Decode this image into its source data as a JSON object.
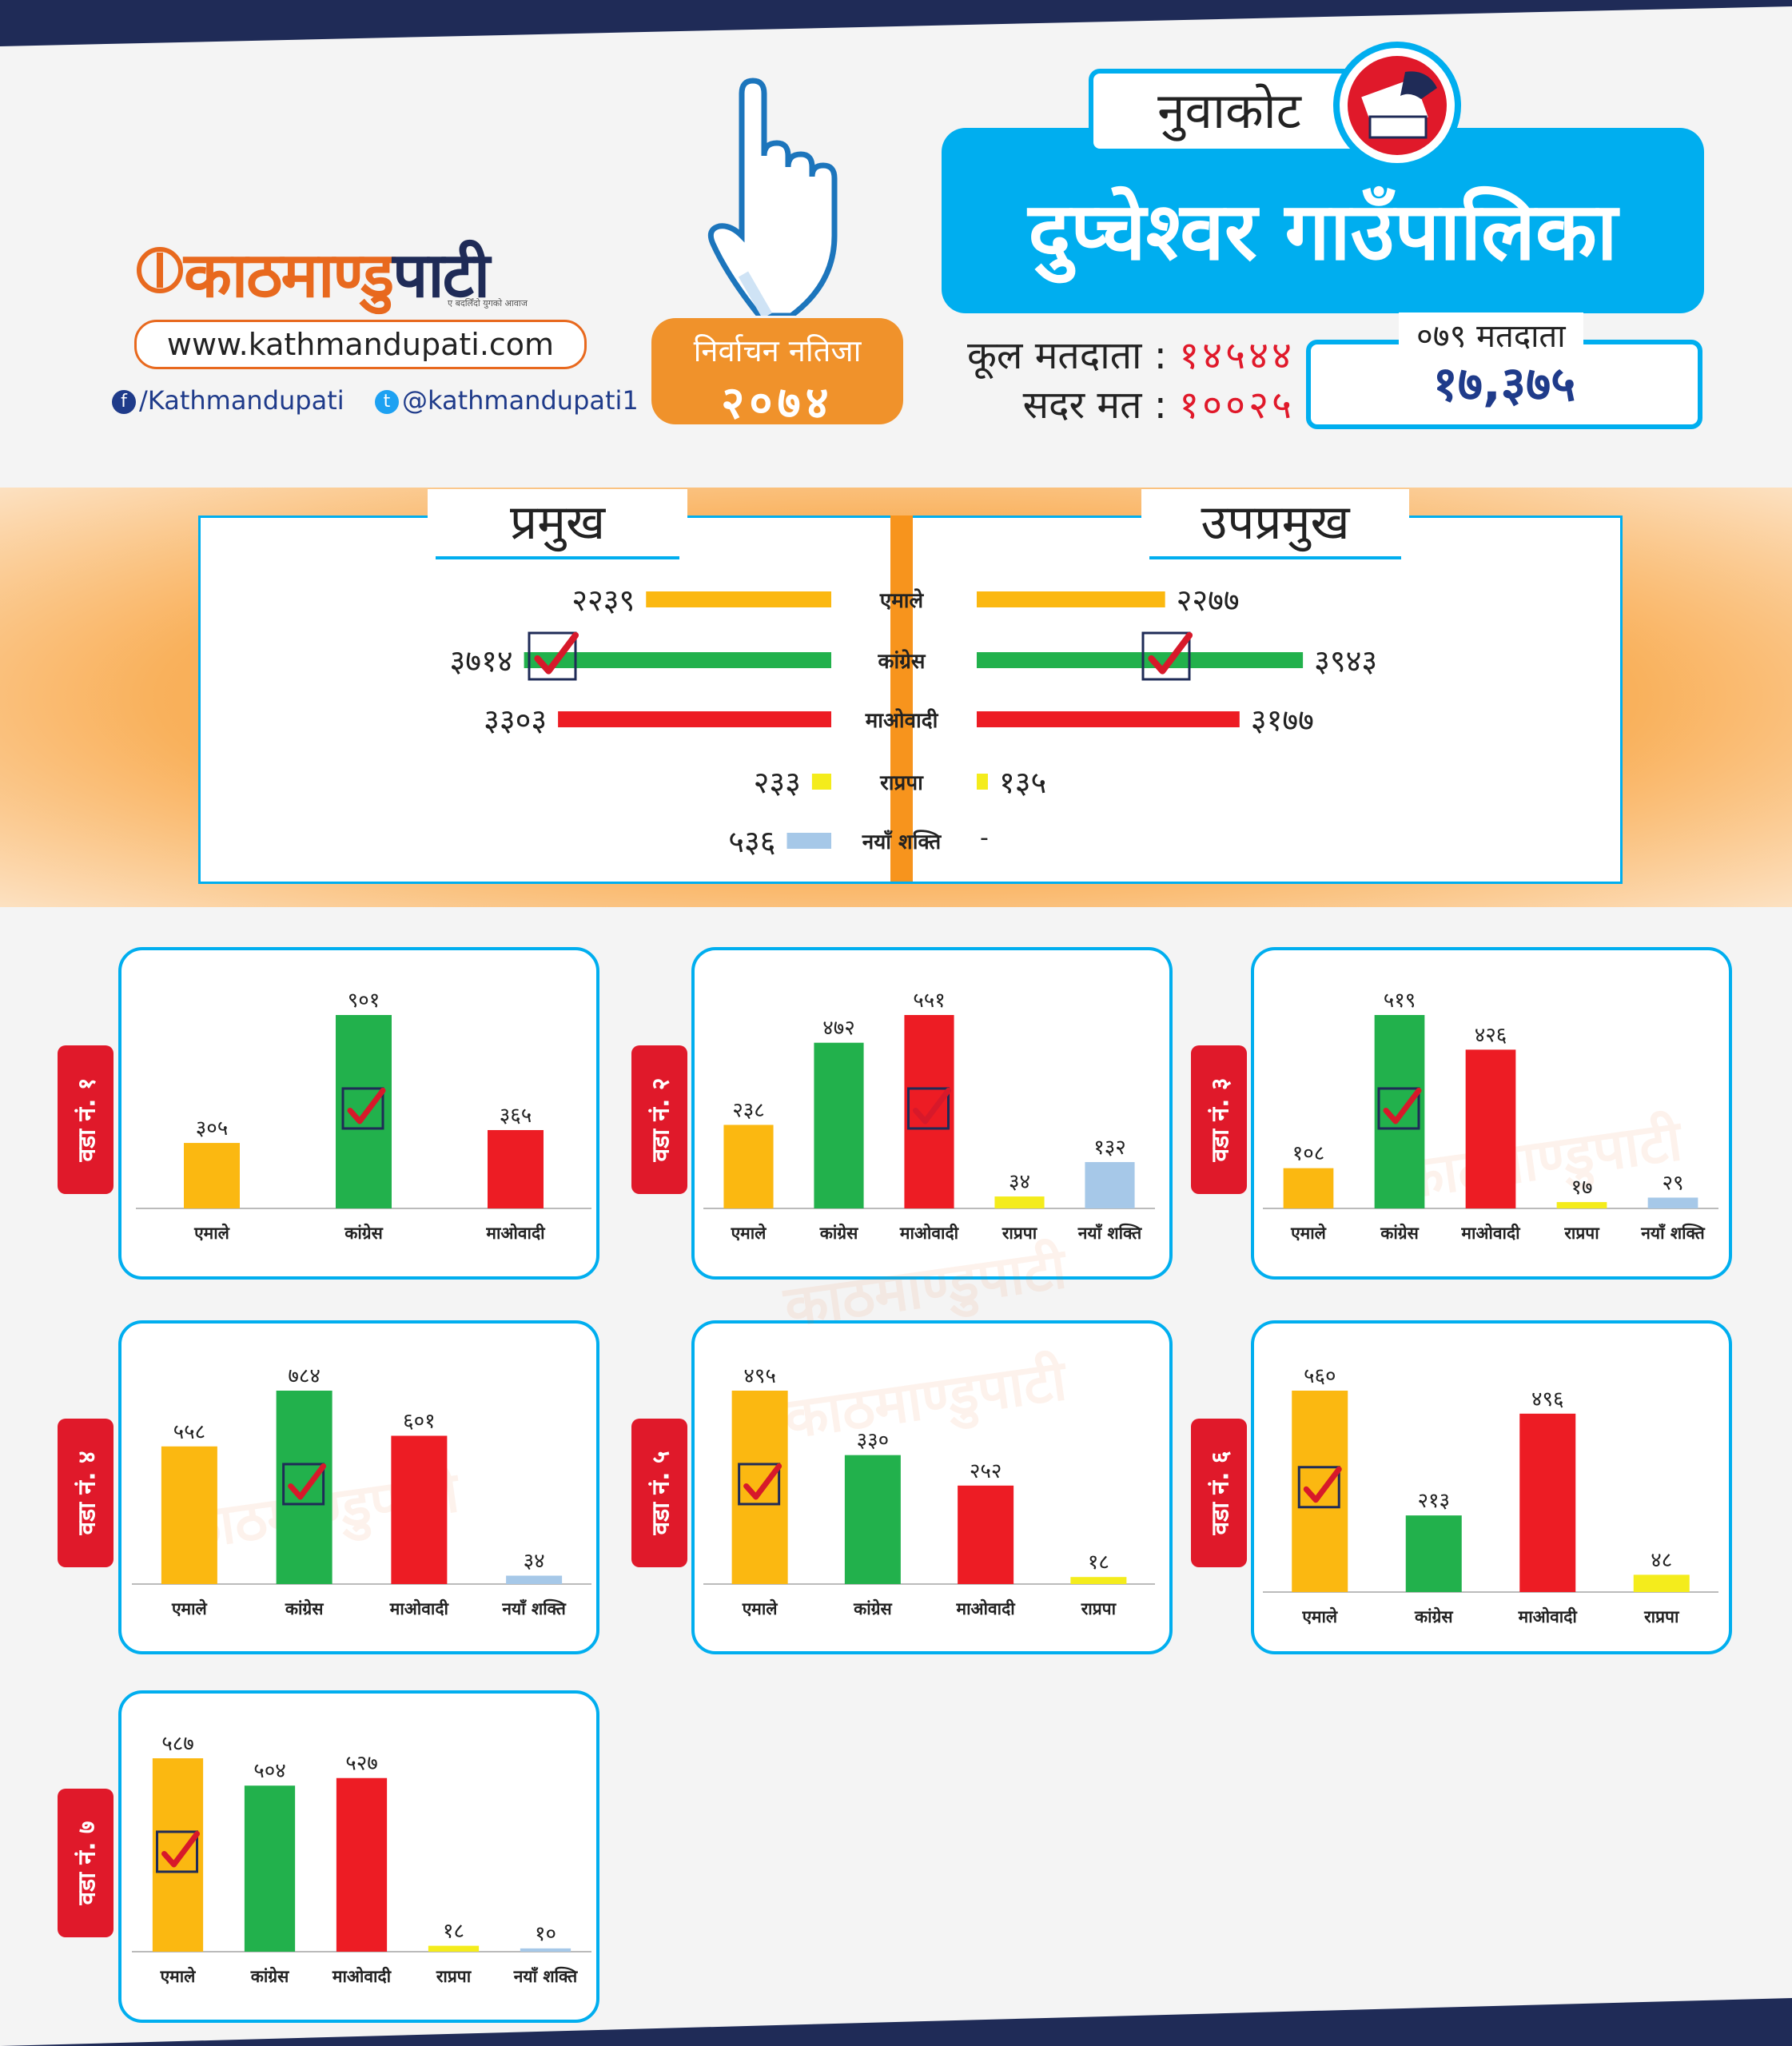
{
  "colors": {
    "navy": "#1f2b57",
    "blue": "#00aeef",
    "orange": "#f0922b",
    "red": "#e0192a",
    "emale": "#fbb811",
    "congress": "#22b14c",
    "maoist": "#ed1c24",
    "rpp": "#f4ec1c",
    "nayashakti": "#a6c8e8"
  },
  "header": {
    "logo": {
      "main": "काठमाण्डु",
      "accent": "पाटी",
      "tagline": "ए बदलिँदो युगको आवाज"
    },
    "website": "www.kathmandupati.com",
    "facebook": "/Kathmandupati",
    "twitter": "@kathmandupati1",
    "result_badge": {
      "line1": "निर्वाचन नतिजा",
      "line2": "२०७४"
    },
    "district": "नुवाकोट",
    "municipality": "दुप्चेश्वर  गाउँपालिका",
    "total_voters_label": "कूल मतदाता :",
    "total_voters": "१४५४४",
    "valid_votes_label": "सदर मत :",
    "valid_votes": "१००२५",
    "voters_079_label": "०७९ मतदाता",
    "voters_079": "१७,३७५",
    "icons": [
      "hand-icon",
      "ballot-box-icon",
      "facebook-icon",
      "twitter-icon"
    ]
  },
  "summary": {
    "chief_label": "प्रमुख",
    "deputy_label": "उपप्रमुख",
    "parties": [
      "एमाले",
      "कांग्रेस",
      "माओवादी",
      "राप्रपा",
      "नयाँ शक्ति"
    ],
    "chief_values_text": [
      "२२३९",
      "३७१४",
      "३३०३",
      "२३३",
      "५३६"
    ],
    "deputy_values_text": [
      "२२७७",
      "३९४३",
      "३१७७",
      "१३५",
      "-"
    ]
  },
  "chart_data": [
    {
      "type": "bar",
      "title": "प्रमुख",
      "categories": [
        "एमाले",
        "कांग्रेस",
        "माओवादी",
        "राप्रपा",
        "नयाँ शक्ति"
      ],
      "values": [
        2239,
        3714,
        3303,
        233,
        536
      ],
      "winner": "कांग्रेस"
    },
    {
      "type": "bar",
      "title": "उपप्रमुख",
      "categories": [
        "एमाले",
        "कांग्रेस",
        "माओवादी",
        "राप्रपा",
        "नयाँ शक्ति"
      ],
      "values": [
        2277,
        3943,
        3177,
        135,
        null
      ],
      "winner": "कांग्रेस"
    },
    {
      "type": "bar",
      "title": "वडा नं. १",
      "categories": [
        "एमाले",
        "कांग्रेस",
        "माओवादी"
      ],
      "values": [
        305,
        901,
        365
      ],
      "labels": [
        "३०५",
        "९०१",
        "३६५"
      ],
      "winner": "कांग्रेस"
    },
    {
      "type": "bar",
      "title": "वडा नं. २",
      "categories": [
        "एमाले",
        "कांग्रेस",
        "माओवादी",
        "राप्रपा",
        "नयाँ शक्ति"
      ],
      "values": [
        238,
        472,
        551,
        34,
        132
      ],
      "labels": [
        "२३८",
        "४७२",
        "५५१",
        "३४",
        "१३२"
      ],
      "winner": "माओवादी"
    },
    {
      "type": "bar",
      "title": "वडा नं. ३",
      "categories": [
        "एमाले",
        "कांग्रेस",
        "माओवादी",
        "राप्रपा",
        "नयाँ शक्ति"
      ],
      "values": [
        108,
        519,
        426,
        17,
        29
      ],
      "labels": [
        "१०८",
        "५१९",
        "४२६",
        "१७",
        "२९"
      ],
      "winner": "कांग्रेस"
    },
    {
      "type": "bar",
      "title": "वडा नं. ४",
      "categories": [
        "एमाले",
        "कांग्रेस",
        "माओवादी",
        "नयाँ शक्ति"
      ],
      "values": [
        558,
        784,
        601,
        34
      ],
      "labels": [
        "५५८",
        "७८४",
        "६०१",
        "३४"
      ],
      "winner": "कांग्रेस"
    },
    {
      "type": "bar",
      "title": "वडा नं. ५",
      "categories": [
        "एमाले",
        "कांग्रेस",
        "माओवादी",
        "राप्रपा"
      ],
      "values": [
        495,
        330,
        252,
        18
      ],
      "labels": [
        "४९५",
        "३३०",
        "२५२",
        "१८"
      ],
      "winner": "एमाले"
    },
    {
      "type": "bar",
      "title": "वडा नं. ६",
      "categories": [
        "एमाले",
        "कांग्रेस",
        "माओवादी",
        "राप्रपा"
      ],
      "values": [
        560,
        213,
        496,
        48
      ],
      "labels": [
        "५६०",
        "२१३",
        "४९६",
        "४८"
      ],
      "winner": "एमाले"
    },
    {
      "type": "bar",
      "title": "वडा नं. ७",
      "categories": [
        "एमाले",
        "कांग्रेस",
        "माओवादी",
        "राप्रपा",
        "नयाँ शक्ति"
      ],
      "values": [
        587,
        504,
        527,
        18,
        10
      ],
      "labels": [
        "५८७",
        "५०४",
        "५२७",
        "१८",
        "१०"
      ],
      "winner": "एमाले"
    }
  ]
}
